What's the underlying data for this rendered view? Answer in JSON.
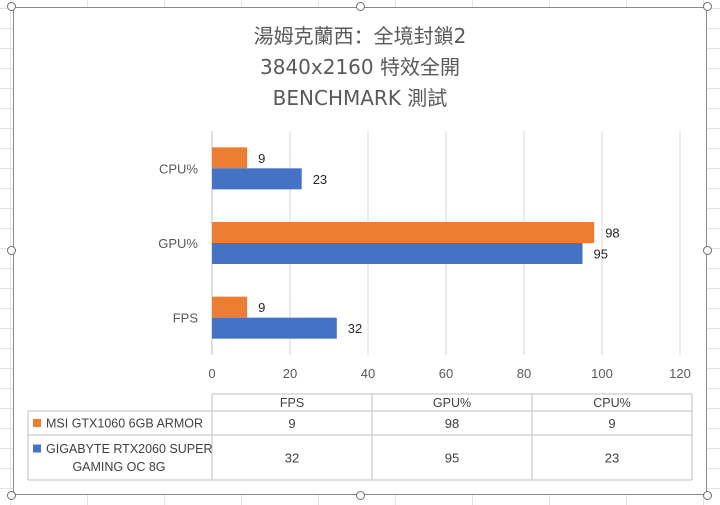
{
  "chart_data": {
    "type": "bar",
    "orientation": "horizontal",
    "title_lines": [
      "湯姆克蘭西：全境封鎖2",
      "3840x2160 特效全開",
      "BENCHMARK 測試"
    ],
    "categories": [
      "FPS",
      "GPU%",
      "CPU%"
    ],
    "series": [
      {
        "name": "MSI GTX1060 6GB ARMOR",
        "color": "#ed7d31",
        "values": [
          9,
          98,
          9
        ]
      },
      {
        "name": "GIGABYTE RTX2060 SUPER GAMING OC 8G",
        "name_lines": [
          "GIGABYTE RTX2060 SUPER",
          "GAMING OC 8G"
        ],
        "color": "#4472c4",
        "values": [
          32,
          95,
          23
        ]
      }
    ],
    "xlim": [
      0,
      120
    ],
    "xticks": [
      0,
      20,
      40,
      60,
      80,
      100,
      120
    ],
    "grid": true,
    "legend": "data-table-below"
  }
}
